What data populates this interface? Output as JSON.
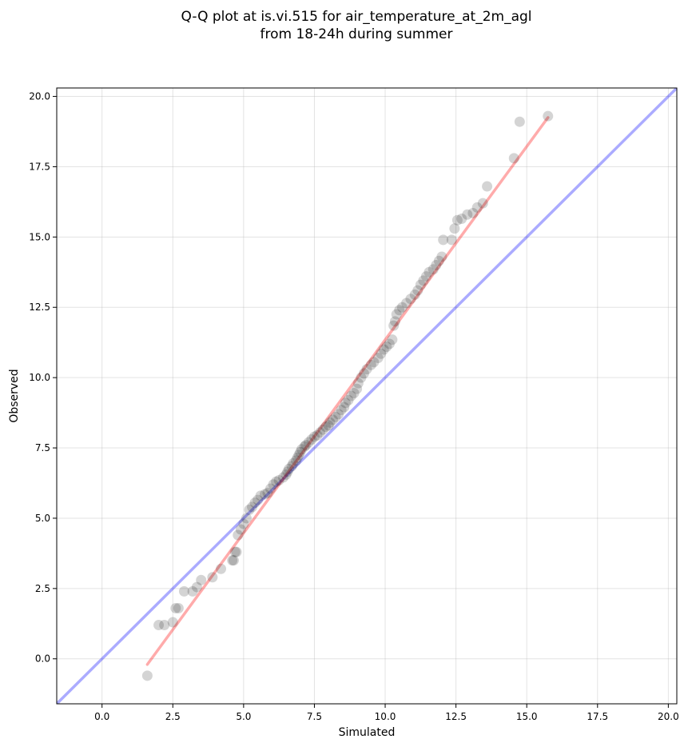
{
  "chart_data": {
    "type": "scatter",
    "title_line1": "Q-Q plot at is.vi.515 for air_temperature_at_2m_agl",
    "title_line2": "from 18-24h during summer",
    "xlabel": "Simulated",
    "ylabel": "Observed",
    "xlim": [
      -1.6,
      20.3
    ],
    "ylim": [
      -1.6,
      20.3
    ],
    "xticks": [
      0.0,
      2.5,
      5.0,
      7.5,
      10.0,
      12.5,
      15.0,
      17.5,
      20.0
    ],
    "yticks": [
      0.0,
      2.5,
      5.0,
      7.5,
      10.0,
      12.5,
      15.0,
      17.5,
      20.0
    ],
    "xtick_labels": [
      "0.0",
      "2.5",
      "5.0",
      "7.5",
      "10.0",
      "12.5",
      "15.0",
      "17.5",
      "20.0"
    ],
    "ytick_labels": [
      "0.0",
      "2.5",
      "5.0",
      "7.5",
      "10.0",
      "12.5",
      "15.0",
      "17.5",
      "20.0"
    ],
    "grid": true,
    "reference_line": {
      "color": "#0000ff",
      "alpha": 0.33,
      "points": [
        [
          -1.6,
          -1.6
        ],
        [
          20.3,
          20.3
        ]
      ]
    },
    "fit_line": {
      "color": "#ff0000",
      "alpha": 0.33,
      "points": [
        [
          1.6,
          -0.2
        ],
        [
          15.75,
          19.25
        ]
      ]
    },
    "point_color": "#000000",
    "points": [
      [
        1.6,
        -0.6
      ],
      [
        2.0,
        1.2
      ],
      [
        2.2,
        1.2
      ],
      [
        2.6,
        1.8
      ],
      [
        2.7,
        1.8
      ],
      [
        2.5,
        1.3
      ],
      [
        2.9,
        2.4
      ],
      [
        3.2,
        2.4
      ],
      [
        3.35,
        2.55
      ],
      [
        3.5,
        2.8
      ],
      [
        3.9,
        2.9
      ],
      [
        4.2,
        3.2
      ],
      [
        4.6,
        3.5
      ],
      [
        4.65,
        3.5
      ],
      [
        4.7,
        3.8
      ],
      [
        4.75,
        3.8
      ],
      [
        4.8,
        4.4
      ],
      [
        4.9,
        4.6
      ],
      [
        5.0,
        4.8
      ],
      [
        5.1,
        5.0
      ],
      [
        5.2,
        5.3
      ],
      [
        5.3,
        5.4
      ],
      [
        5.4,
        5.55
      ],
      [
        5.5,
        5.65
      ],
      [
        5.6,
        5.8
      ],
      [
        5.75,
        5.85
      ],
      [
        5.85,
        5.9
      ],
      [
        5.95,
        6.05
      ],
      [
        6.05,
        6.2
      ],
      [
        6.15,
        6.3
      ],
      [
        6.25,
        6.35
      ],
      [
        6.4,
        6.45
      ],
      [
        6.5,
        6.55
      ],
      [
        6.55,
        6.65
      ],
      [
        6.6,
        6.75
      ],
      [
        6.7,
        6.85
      ],
      [
        6.75,
        6.95
      ],
      [
        6.85,
        7.05
      ],
      [
        6.9,
        7.15
      ],
      [
        6.95,
        7.25
      ],
      [
        7.0,
        7.35
      ],
      [
        7.05,
        7.45
      ],
      [
        7.15,
        7.55
      ],
      [
        7.2,
        7.6
      ],
      [
        7.3,
        7.7
      ],
      [
        7.4,
        7.8
      ],
      [
        7.5,
        7.9
      ],
      [
        7.6,
        7.95
      ],
      [
        7.7,
        8.05
      ],
      [
        7.8,
        8.15
      ],
      [
        7.9,
        8.25
      ],
      [
        8.0,
        8.3
      ],
      [
        8.05,
        8.4
      ],
      [
        8.15,
        8.5
      ],
      [
        8.25,
        8.6
      ],
      [
        8.35,
        8.7
      ],
      [
        8.45,
        8.85
      ],
      [
        8.55,
        8.95
      ],
      [
        8.6,
        9.1
      ],
      [
        8.7,
        9.2
      ],
      [
        8.8,
        9.35
      ],
      [
        8.9,
        9.45
      ],
      [
        9.0,
        9.6
      ],
      [
        9.05,
        9.8
      ],
      [
        9.15,
        10.0
      ],
      [
        9.25,
        10.15
      ],
      [
        9.35,
        10.3
      ],
      [
        9.5,
        10.45
      ],
      [
        9.6,
        10.55
      ],
      [
        9.75,
        10.7
      ],
      [
        9.85,
        10.85
      ],
      [
        9.95,
        11.0
      ],
      [
        10.05,
        11.1
      ],
      [
        10.15,
        11.2
      ],
      [
        10.25,
        11.35
      ],
      [
        10.3,
        11.85
      ],
      [
        10.35,
        12.0
      ],
      [
        10.4,
        12.25
      ],
      [
        10.5,
        12.4
      ],
      [
        10.6,
        12.5
      ],
      [
        10.75,
        12.65
      ],
      [
        10.9,
        12.8
      ],
      [
        11.05,
        12.95
      ],
      [
        11.15,
        13.1
      ],
      [
        11.25,
        13.3
      ],
      [
        11.35,
        13.45
      ],
      [
        11.45,
        13.6
      ],
      [
        11.55,
        13.75
      ],
      [
        11.7,
        13.85
      ],
      [
        11.8,
        14.0
      ],
      [
        11.9,
        14.15
      ],
      [
        12.0,
        14.3
      ],
      [
        12.05,
        14.9
      ],
      [
        12.35,
        14.9
      ],
      [
        12.45,
        15.3
      ],
      [
        12.55,
        15.6
      ],
      [
        12.7,
        15.65
      ],
      [
        12.9,
        15.8
      ],
      [
        13.1,
        15.85
      ],
      [
        13.25,
        16.05
      ],
      [
        13.45,
        16.2
      ],
      [
        13.6,
        16.8
      ],
      [
        14.55,
        17.8
      ],
      [
        14.75,
        19.1
      ],
      [
        15.75,
        19.3
      ]
    ]
  }
}
